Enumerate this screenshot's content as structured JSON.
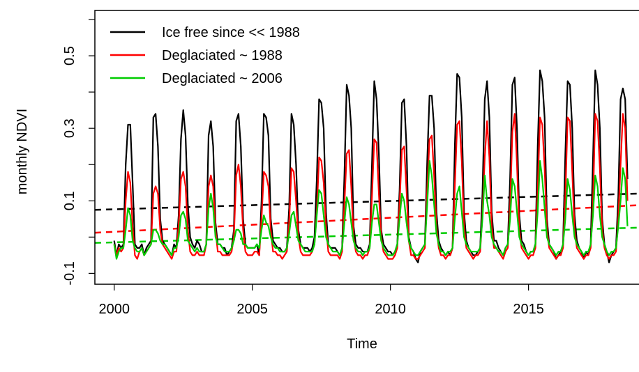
{
  "chart_data": {
    "type": "line",
    "title": "",
    "xlabel": "Time",
    "ylabel": "monthly NDVI",
    "xlim": [
      1999.3,
      2019.0
    ],
    "ylim": [
      -0.13,
      0.625
    ],
    "x_ticks": [
      2000,
      2005,
      2010,
      2015
    ],
    "x_tick_labels": [
      "2000",
      "2005",
      "2010",
      "2015"
    ],
    "y_ticks": [
      -0.1,
      0.1,
      0.3,
      0.5
    ],
    "y_tick_labels": [
      "-0.1",
      "0.1",
      "0.3",
      "0.5"
    ],
    "y_minor_ticks": [
      0.0,
      0.2,
      0.4,
      0.6
    ],
    "grid": false,
    "legend_position": "top-left",
    "x_start": 2000.0,
    "x_step": 0.08333,
    "series": [
      {
        "name": "Ice free since << 1988",
        "color": "#000000",
        "style": "solid",
        "values": [
          -0.01,
          -0.05,
          -0.02,
          -0.03,
          -0.02,
          0.2,
          0.31,
          0.31,
          0.15,
          -0.02,
          -0.03,
          -0.03,
          -0.02,
          -0.05,
          -0.03,
          -0.02,
          -0.01,
          0.33,
          0.34,
          0.25,
          0.05,
          -0.01,
          -0.02,
          -0.03,
          -0.04,
          -0.05,
          -0.02,
          -0.03,
          0.06,
          0.27,
          0.35,
          0.28,
          0.09,
          0.0,
          -0.02,
          -0.03,
          -0.01,
          -0.02,
          -0.04,
          -0.04,
          -0.02,
          0.28,
          0.32,
          0.25,
          0.04,
          -0.02,
          -0.02,
          -0.03,
          -0.03,
          -0.05,
          -0.04,
          -0.03,
          0.02,
          0.32,
          0.34,
          0.25,
          0.05,
          -0.02,
          -0.03,
          -0.03,
          -0.03,
          -0.03,
          -0.02,
          -0.05,
          0.1,
          0.34,
          0.33,
          0.28,
          0.05,
          -0.01,
          -0.02,
          -0.03,
          -0.03,
          -0.04,
          -0.04,
          -0.03,
          0.08,
          0.34,
          0.31,
          0.2,
          0.02,
          -0.02,
          -0.03,
          -0.03,
          -0.03,
          -0.04,
          -0.03,
          0.0,
          0.16,
          0.38,
          0.37,
          0.3,
          0.07,
          -0.02,
          -0.03,
          -0.03,
          -0.03,
          -0.04,
          -0.05,
          -0.03,
          0.17,
          0.42,
          0.39,
          0.3,
          0.03,
          -0.02,
          -0.03,
          -0.03,
          -0.04,
          -0.04,
          -0.04,
          -0.02,
          0.2,
          0.43,
          0.38,
          0.23,
          0.02,
          -0.02,
          -0.03,
          -0.04,
          -0.04,
          -0.05,
          -0.04,
          -0.02,
          0.13,
          0.37,
          0.38,
          0.25,
          0.0,
          -0.03,
          -0.04,
          -0.06,
          -0.07,
          -0.04,
          -0.03,
          -0.02,
          0.21,
          0.39,
          0.39,
          0.3,
          0.07,
          -0.01,
          -0.03,
          -0.04,
          -0.05,
          -0.04,
          -0.05,
          -0.03,
          0.25,
          0.45,
          0.44,
          0.33,
          0.07,
          -0.01,
          -0.03,
          -0.04,
          -0.05,
          -0.05,
          -0.04,
          -0.03,
          0.12,
          0.38,
          0.43,
          0.33,
          0.07,
          -0.01,
          -0.01,
          -0.03,
          -0.04,
          -0.05,
          -0.03,
          -0.02,
          0.16,
          0.42,
          0.44,
          0.3,
          0.06,
          -0.01,
          -0.02,
          -0.04,
          -0.05,
          -0.04,
          -0.04,
          -0.02,
          0.25,
          0.46,
          0.43,
          0.33,
          0.05,
          -0.02,
          -0.03,
          -0.04,
          -0.06,
          -0.05,
          -0.04,
          -0.02,
          0.23,
          0.43,
          0.42,
          0.3,
          0.06,
          -0.01,
          -0.03,
          -0.04,
          -0.06,
          -0.04,
          -0.05,
          -0.02,
          0.21,
          0.46,
          0.42,
          0.3,
          0.05,
          -0.02,
          -0.04,
          -0.07,
          -0.05,
          -0.04,
          -0.03,
          0.11,
          0.38,
          0.41,
          0.38,
          0.16
        ]
      },
      {
        "name": "Deglaciated ~ 1988",
        "color": "#ff0000",
        "style": "solid",
        "values": [
          -0.02,
          -0.05,
          -0.03,
          -0.04,
          -0.03,
          0.1,
          0.18,
          0.15,
          0.03,
          -0.05,
          -0.06,
          -0.04,
          -0.03,
          -0.05,
          -0.04,
          -0.03,
          -0.02,
          0.12,
          0.14,
          0.12,
          0.02,
          -0.02,
          -0.03,
          -0.04,
          -0.05,
          -0.06,
          -0.04,
          -0.04,
          0.03,
          0.16,
          0.18,
          0.14,
          0.02,
          -0.04,
          -0.05,
          -0.05,
          -0.04,
          -0.05,
          -0.05,
          -0.05,
          -0.02,
          0.14,
          0.17,
          0.14,
          0.02,
          -0.04,
          -0.04,
          -0.05,
          -0.05,
          -0.05,
          -0.05,
          -0.04,
          0.0,
          0.17,
          0.2,
          0.14,
          0.02,
          -0.04,
          -0.05,
          -0.05,
          -0.05,
          -0.04,
          -0.04,
          -0.05,
          0.05,
          0.18,
          0.17,
          0.14,
          0.02,
          -0.04,
          -0.04,
          -0.05,
          -0.05,
          -0.06,
          -0.05,
          -0.04,
          0.04,
          0.19,
          0.18,
          0.1,
          0.0,
          -0.04,
          -0.05,
          -0.05,
          -0.05,
          -0.05,
          -0.04,
          -0.02,
          0.07,
          0.22,
          0.21,
          0.15,
          0.03,
          -0.04,
          -0.05,
          -0.05,
          -0.05,
          -0.05,
          -0.06,
          -0.04,
          0.09,
          0.23,
          0.24,
          0.14,
          0.0,
          -0.04,
          -0.05,
          -0.05,
          -0.06,
          -0.05,
          -0.05,
          -0.03,
          0.11,
          0.27,
          0.26,
          0.12,
          0.0,
          -0.04,
          -0.05,
          -0.06,
          -0.06,
          -0.06,
          -0.05,
          -0.03,
          0.09,
          0.24,
          0.25,
          0.13,
          -0.01,
          -0.05,
          -0.05,
          -0.06,
          -0.06,
          -0.05,
          -0.04,
          -0.03,
          0.13,
          0.27,
          0.28,
          0.17,
          0.03,
          -0.03,
          -0.05,
          -0.05,
          -0.06,
          -0.05,
          -0.05,
          -0.03,
          0.14,
          0.31,
          0.32,
          0.21,
          0.03,
          -0.03,
          -0.04,
          -0.05,
          -0.06,
          -0.05,
          -0.05,
          -0.04,
          0.06,
          0.22,
          0.32,
          0.22,
          0.03,
          -0.03,
          -0.03,
          -0.04,
          -0.05,
          -0.06,
          -0.04,
          -0.03,
          0.08,
          0.29,
          0.34,
          0.2,
          0.02,
          -0.03,
          -0.04,
          -0.05,
          -0.06,
          -0.05,
          -0.05,
          -0.03,
          0.13,
          0.33,
          0.31,
          0.19,
          0.02,
          -0.03,
          -0.04,
          -0.05,
          -0.06,
          -0.05,
          -0.05,
          -0.03,
          0.11,
          0.33,
          0.32,
          0.18,
          0.02,
          -0.03,
          -0.04,
          -0.05,
          -0.06,
          -0.05,
          -0.05,
          -0.03,
          0.09,
          0.34,
          0.32,
          0.19,
          0.02,
          -0.03,
          -0.05,
          -0.06,
          -0.05,
          -0.05,
          -0.04,
          0.05,
          0.2,
          0.34,
          0.3,
          0.1
        ]
      },
      {
        "name": "Deglaciated ~ 2006",
        "color": "#00cc00",
        "style": "solid",
        "values": [
          -0.02,
          -0.06,
          -0.04,
          -0.03,
          -0.03,
          0.02,
          0.08,
          0.06,
          -0.01,
          -0.03,
          -0.04,
          -0.04,
          -0.03,
          -0.05,
          -0.04,
          -0.03,
          -0.02,
          0.02,
          0.02,
          0.01,
          -0.01,
          -0.02,
          -0.02,
          -0.03,
          -0.04,
          -0.05,
          -0.03,
          -0.03,
          0.0,
          0.06,
          0.07,
          0.05,
          -0.01,
          -0.02,
          -0.03,
          -0.04,
          -0.03,
          -0.04,
          -0.04,
          -0.04,
          -0.02,
          0.08,
          0.12,
          0.08,
          0.0,
          -0.02,
          -0.02,
          -0.03,
          -0.04,
          -0.04,
          -0.04,
          -0.03,
          -0.01,
          0.02,
          0.02,
          0.01,
          -0.02,
          -0.02,
          -0.03,
          -0.03,
          -0.03,
          -0.03,
          -0.02,
          -0.03,
          0.02,
          0.06,
          0.04,
          0.03,
          0.0,
          -0.02,
          -0.03,
          -0.03,
          -0.04,
          -0.04,
          -0.04,
          -0.03,
          0.01,
          0.06,
          0.07,
          0.03,
          -0.01,
          -0.02,
          -0.03,
          -0.04,
          -0.04,
          -0.04,
          -0.04,
          -0.02,
          0.06,
          0.13,
          0.12,
          0.06,
          0.0,
          -0.02,
          -0.03,
          -0.04,
          -0.04,
          -0.04,
          -0.05,
          -0.03,
          0.04,
          0.11,
          0.09,
          0.04,
          -0.01,
          -0.03,
          -0.04,
          -0.04,
          -0.05,
          -0.04,
          -0.04,
          -0.03,
          0.04,
          0.09,
          0.09,
          0.04,
          -0.01,
          -0.03,
          -0.04,
          -0.05,
          -0.05,
          -0.05,
          -0.04,
          -0.02,
          0.05,
          0.12,
          0.1,
          0.04,
          -0.01,
          -0.03,
          -0.04,
          -0.05,
          -0.05,
          -0.04,
          -0.03,
          -0.02,
          0.09,
          0.21,
          0.17,
          0.09,
          0.01,
          -0.02,
          -0.04,
          -0.04,
          -0.05,
          -0.04,
          -0.04,
          -0.03,
          0.05,
          0.12,
          0.14,
          0.07,
          0.0,
          -0.02,
          -0.03,
          -0.04,
          -0.04,
          -0.04,
          -0.04,
          -0.03,
          0.05,
          0.17,
          0.1,
          0.06,
          0.0,
          -0.02,
          -0.03,
          -0.04,
          -0.04,
          -0.05,
          -0.03,
          -0.02,
          0.05,
          0.16,
          0.14,
          0.07,
          0.0,
          -0.02,
          -0.03,
          -0.04,
          -0.05,
          -0.04,
          -0.04,
          -0.02,
          0.07,
          0.21,
          0.16,
          0.08,
          0.0,
          -0.02,
          -0.03,
          -0.04,
          -0.05,
          -0.04,
          -0.04,
          -0.02,
          0.05,
          0.16,
          0.13,
          0.06,
          0.0,
          -0.02,
          -0.03,
          -0.04,
          -0.05,
          -0.04,
          -0.04,
          -0.02,
          0.06,
          0.17,
          0.14,
          0.06,
          0.0,
          -0.02,
          -0.04,
          -0.05,
          -0.04,
          -0.04,
          -0.03,
          0.03,
          0.1,
          0.19,
          0.16,
          0.03
        ]
      }
    ],
    "trend_lines": [
      {
        "series": "Ice free since << 1988",
        "color": "#000000",
        "style": "dashed",
        "x": [
          1999.3,
          2019.0
        ],
        "y": [
          0.075,
          0.12
        ]
      },
      {
        "series": "Deglaciated ~ 1988",
        "color": "#ff0000",
        "style": "dashed",
        "x": [
          1999.3,
          2019.0
        ],
        "y": [
          0.012,
          0.088
        ]
      },
      {
        "series": "Deglaciated ~ 2006",
        "color": "#00cc00",
        "style": "dashed",
        "x": [
          1999.3,
          2019.0
        ],
        "y": [
          -0.016,
          0.026
        ]
      }
    ]
  }
}
